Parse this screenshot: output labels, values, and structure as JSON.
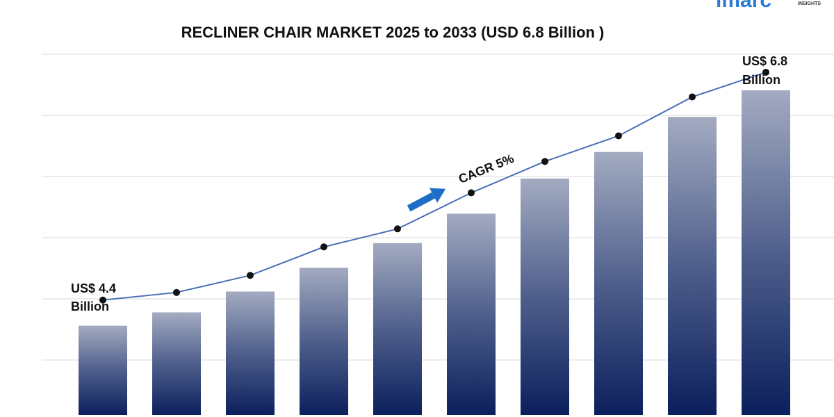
{
  "chart_data": {
    "type": "bar-line",
    "title": "RECLINER CHAIR MARKET 2025 to 2033 (USD 6.8 Billion )",
    "logo": "imarc",
    "logo_sub": "INSIGHTS",
    "start_label": [
      "US$ 4.4",
      "Billion"
    ],
    "end_label": [
      "US$ 6.8",
      "Billion"
    ],
    "cagr_label": "CAGR 5%",
    "categories": [
      null,
      null,
      null,
      null,
      null,
      null,
      null,
      null,
      null,
      null
    ],
    "ylim": [
      3.19,
      6.99
    ],
    "series": [
      {
        "type": "bar",
        "color": "#0b1f5c",
        "values": [
          4.13,
          4.27,
          4.49,
          4.74,
          5.0,
          5.31,
          5.68,
          5.96,
          6.33,
          6.61
        ]
      },
      {
        "type": "line",
        "color": "#4a6fb5",
        "values": [
          4.4,
          4.48,
          4.66,
          4.96,
          5.15,
          5.53,
          5.86,
          6.13,
          6.54,
          6.8
        ]
      }
    ]
  }
}
